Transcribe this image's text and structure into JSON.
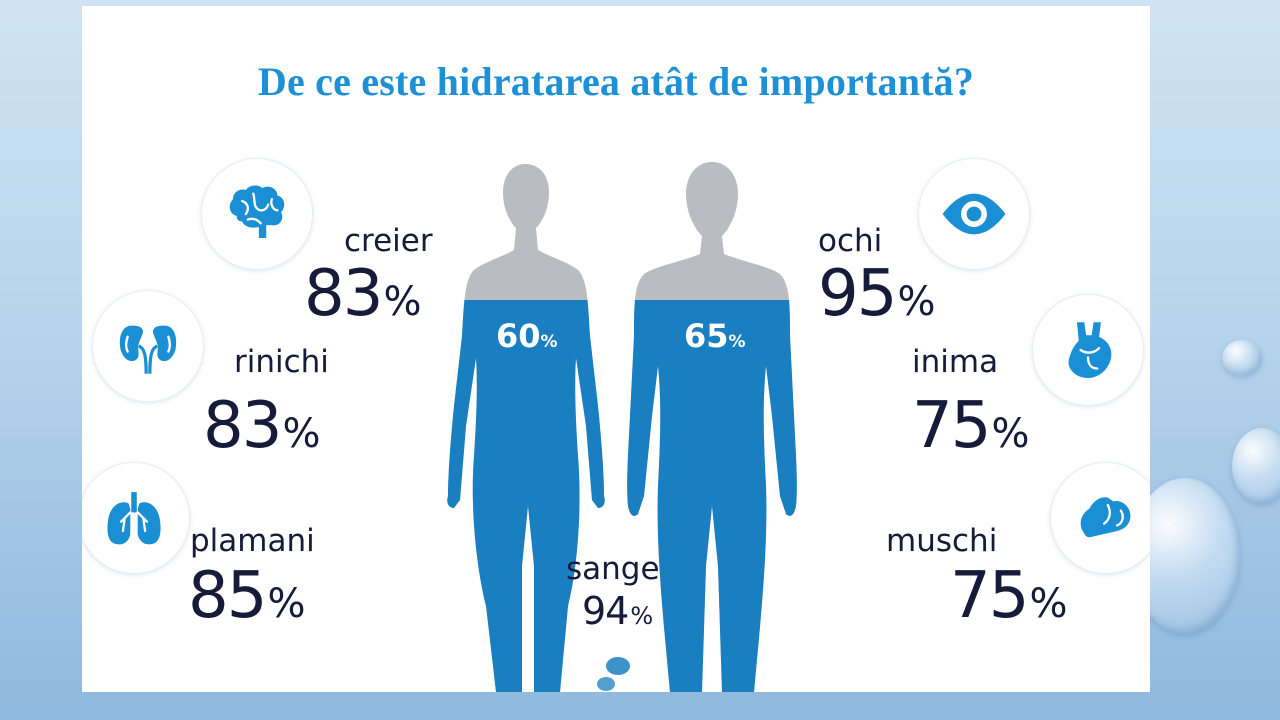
{
  "title": "De ce este hidratarea atât de importantă?",
  "percent_sign": "%",
  "organs": {
    "creier": {
      "label": "creier",
      "value": "83",
      "icon": "brain-icon"
    },
    "rinichi": {
      "label": "rinichi",
      "value": "83",
      "icon": "kidneys-icon"
    },
    "plamani": {
      "label": "plamani",
      "value": "85",
      "icon": "lungs-icon"
    },
    "sange": {
      "label": "sange",
      "value": "94"
    },
    "ochi": {
      "label": "ochi",
      "value": "95",
      "icon": "eye-icon"
    },
    "inima": {
      "label": "inima",
      "value": "75",
      "icon": "heart-icon"
    },
    "muschi": {
      "label": "muschi",
      "value": "75",
      "icon": "muscle-icon"
    }
  },
  "bodies": {
    "female": {
      "value": "60",
      "water_level": 0.6
    },
    "male": {
      "value": "65",
      "water_level": 0.65
    }
  },
  "colors": {
    "title": "#1e90d6",
    "water": "#1a7fc0",
    "silhouette_top": "#b9bcc0",
    "icon_blue": "#1b8fd4",
    "text_dark": "#161b3a"
  }
}
